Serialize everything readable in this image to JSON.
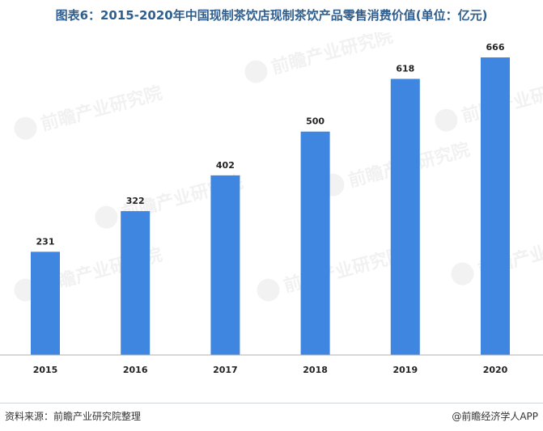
{
  "chart_data": {
    "type": "bar",
    "title": "图表6：2015-2020年中国现制茶饮店现制茶饮产品零售消费价值(单位：亿元)",
    "categories": [
      "2015",
      "2016",
      "2017",
      "2018",
      "2019",
      "2020"
    ],
    "values": [
      231,
      322,
      402,
      500,
      618,
      666
    ],
    "ylim": [
      0,
      666
    ],
    "grid": false,
    "colors": {
      "bar": "#3f86e0",
      "title": "#2f5f8f"
    }
  },
  "footer": {
    "source": "资料来源：前瞻产业研究院整理",
    "brand": "@前瞻经济学人APP"
  },
  "watermark": {
    "text": "前瞻产业研究院"
  }
}
